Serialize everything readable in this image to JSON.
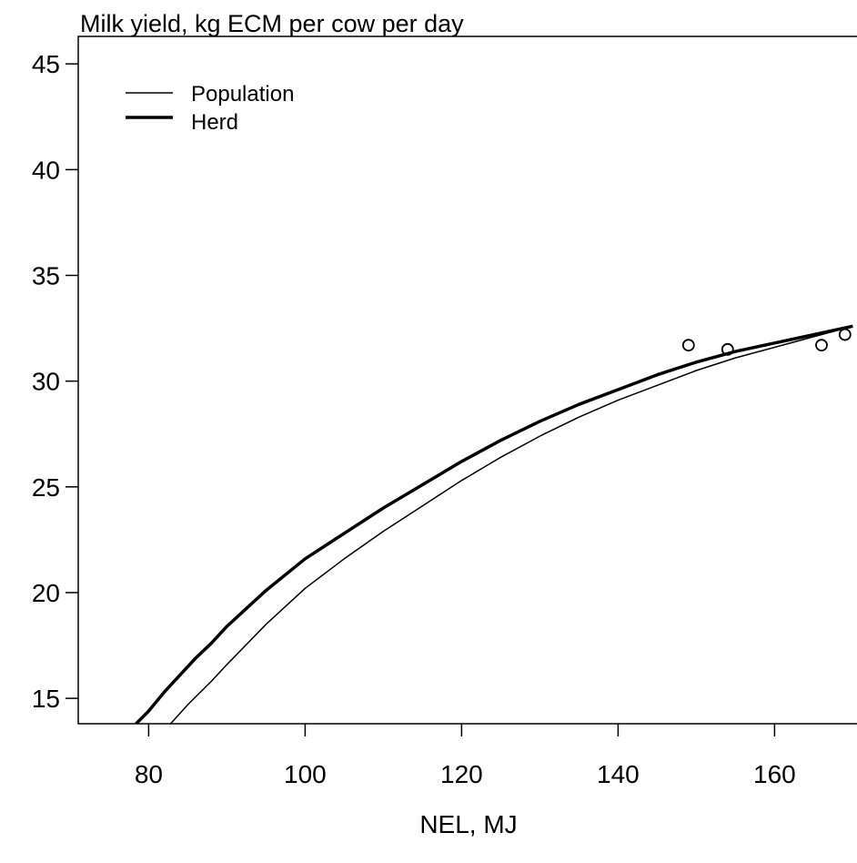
{
  "chart_data": {
    "type": "line",
    "title": "Milk yield, kg ECM per cow per day",
    "xlabel": "NEL, MJ",
    "ylabel": "",
    "xlim": [
      71,
      171
    ],
    "ylim": [
      13.8,
      46.3
    ],
    "x_ticks": [
      80,
      100,
      120,
      140,
      160
    ],
    "y_ticks": [
      15,
      20,
      25,
      30,
      35,
      40,
      45
    ],
    "grid": false,
    "legend_position": "top-left",
    "series": [
      {
        "name": "Population",
        "kind": "line",
        "line_weight": "thin",
        "x": [
          82.8,
          85,
          88,
          90,
          95,
          100,
          105,
          110,
          115,
          120,
          125,
          130,
          135,
          140,
          145,
          150,
          155,
          160,
          165,
          170
        ],
        "values": [
          13.8,
          14.7,
          15.8,
          16.6,
          18.5,
          20.2,
          21.6,
          22.9,
          24.1,
          25.3,
          26.4,
          27.4,
          28.3,
          29.1,
          29.8,
          30.5,
          31.1,
          31.6,
          32.1,
          32.6
        ]
      },
      {
        "name": "Herd",
        "kind": "line",
        "line_weight": "thick",
        "x": [
          78.4,
          80,
          82,
          84,
          86,
          88,
          90,
          95,
          100,
          105,
          110,
          115,
          120,
          125,
          130,
          135,
          140,
          145,
          150,
          155,
          160,
          165,
          170
        ],
        "values": [
          13.8,
          14.4,
          15.3,
          16.1,
          16.9,
          17.6,
          18.4,
          20.1,
          21.6,
          22.8,
          24.0,
          25.1,
          26.2,
          27.2,
          28.1,
          28.9,
          29.6,
          30.3,
          30.9,
          31.4,
          31.8,
          32.2,
          32.6
        ]
      },
      {
        "name": "",
        "kind": "points",
        "x": [
          149,
          154,
          166,
          169
        ],
        "values": [
          31.7,
          31.5,
          31.7,
          32.2
        ]
      }
    ]
  }
}
